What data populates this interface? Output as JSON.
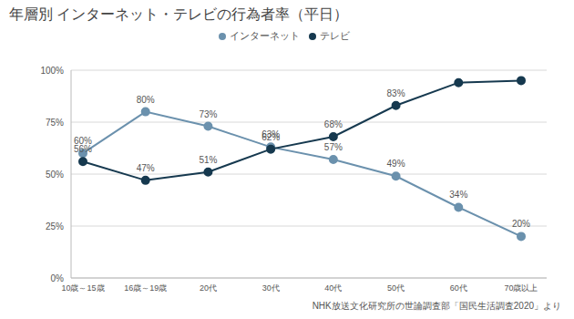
{
  "chart_data": {
    "type": "line",
    "title": "年層別 インターネット・テレビの行為者率（平日）",
    "source": "NHK放送文化研究所の世論調査部「国民生活調査2020」より",
    "categories": [
      "10歳～15歳",
      "16歳～19歳",
      "20代",
      "30代",
      "40代",
      "50代",
      "60代",
      "70歳以上"
    ],
    "series": [
      {
        "name": "インターネット",
        "color": "#6b91ad",
        "marker": "circle",
        "values": [
          60,
          80,
          73,
          63,
          57,
          49,
          34,
          20
        ],
        "value_labels": [
          "60%",
          "80%",
          "73%",
          "63%",
          "57%",
          "49%",
          "34%",
          "20%"
        ]
      },
      {
        "name": "テレビ",
        "color": "#16394f",
        "marker": "circle",
        "values": [
          56,
          47,
          51,
          62,
          68,
          83,
          94,
          95
        ],
        "value_labels": [
          "56%",
          "47%",
          "51%",
          "62%",
          "68%",
          "83%",
          null,
          null
        ]
      }
    ],
    "ylim": [
      0,
      100
    ],
    "yticks": [
      {
        "value": 0,
        "label": "0%"
      },
      {
        "value": 25,
        "label": "25%"
      },
      {
        "value": 50,
        "label": "50%"
      },
      {
        "value": 75,
        "label": "75%"
      },
      {
        "value": 100,
        "label": "100%"
      }
    ],
    "grid": true,
    "legend": "top",
    "data_labels": true
  }
}
